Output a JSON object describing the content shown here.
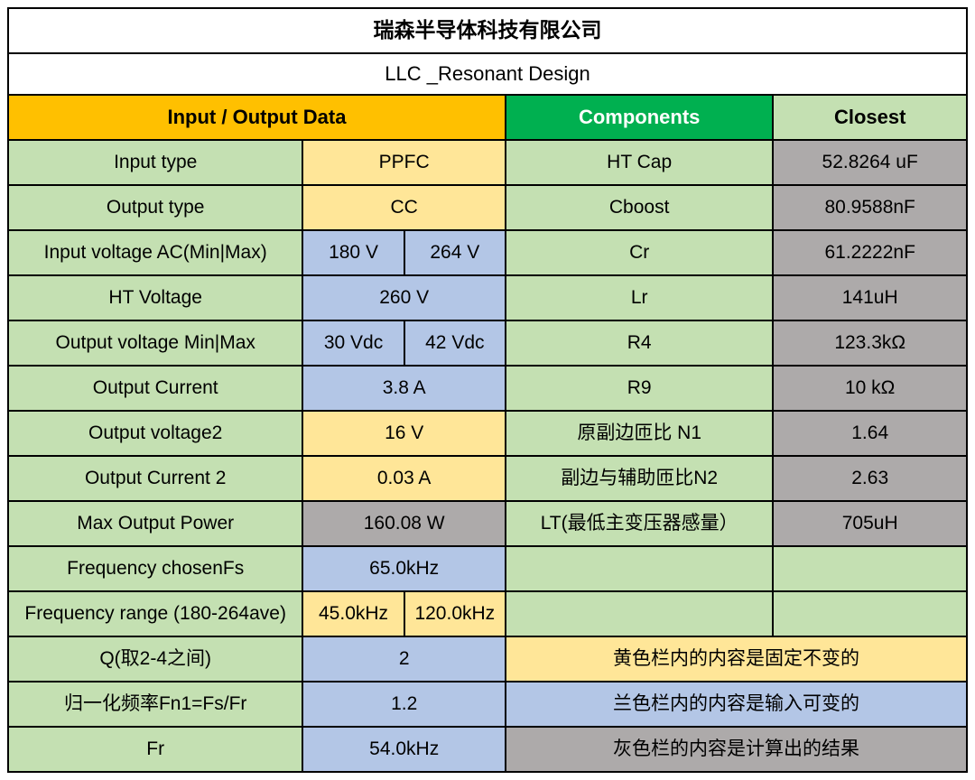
{
  "title": "瑞森半导体科技有限公司",
  "subtitle": "LLC _Resonant Design",
  "headers": {
    "io": "Input / Output Data",
    "components": "Components",
    "closest": "Closest"
  },
  "rows": [
    {
      "label": "Input type",
      "val": "PPFC",
      "split": false,
      "valbg": "bg-yellow",
      "comp": "HT Cap",
      "clos": "52.8264 uF",
      "closbg": "bg-gray"
    },
    {
      "label": "Output type",
      "val": "CC",
      "split": false,
      "valbg": "bg-yellow",
      "comp": "Cboost",
      "clos": "80.9588nF",
      "closbg": "bg-gray"
    },
    {
      "label": "Input voltage AC(Min|Max)",
      "val1": "180 V",
      "val2": "264 V",
      "split": true,
      "valbg": "bg-blue",
      "comp": "Cr",
      "clos": "61.2222nF",
      "closbg": "bg-gray"
    },
    {
      "label": "HT Voltage",
      "val": "260 V",
      "split": false,
      "valbg": "bg-blue",
      "comp": "Lr",
      "clos": "141uH",
      "closbg": "bg-gray"
    },
    {
      "label": "Output voltage Min|Max",
      "val1": "30 Vdc",
      "val2": "42 Vdc",
      "split": true,
      "valbg": "bg-blue",
      "comp": "R4",
      "clos": "123.3kΩ",
      "closbg": "bg-gray"
    },
    {
      "label": "Output Current",
      "val": "3.8 A",
      "split": false,
      "valbg": "bg-blue",
      "comp": "R9",
      "clos": "10 kΩ",
      "closbg": "bg-gray"
    },
    {
      "label": "Output voltage2",
      "val": "16 V",
      "split": false,
      "valbg": "bg-yellow",
      "comp": "原副边匝比 N1",
      "clos": "1.64",
      "closbg": "bg-gray"
    },
    {
      "label": "Output Current 2",
      "val": "0.03 A",
      "split": false,
      "valbg": "bg-yellow",
      "comp": "副边与辅助匝比N2",
      "clos": "2.63",
      "closbg": "bg-gray"
    },
    {
      "label": "Max Output Power",
      "val": "160.08 W",
      "split": false,
      "valbg": "bg-gray",
      "comp": "LT(最低主变压器感量）",
      "clos": "705uH",
      "closbg": "bg-gray"
    },
    {
      "label": "Frequency chosenFs",
      "val": "65.0kHz",
      "split": false,
      "valbg": "bg-blue",
      "comp": "",
      "clos": "",
      "closbg": "bg-lgreen"
    },
    {
      "label": "Frequency range (180-264ave)",
      "val1": "45.0kHz",
      "val2": "120.0kHz",
      "split": true,
      "valbg": "bg-yellow",
      "comp": "",
      "clos": "",
      "closbg": "bg-lgreen"
    }
  ],
  "notes": [
    {
      "label": "Q(取2-4之间)",
      "val": "2",
      "note": "黄色栏内的内容是固定不变的",
      "notebg": "bg-yellow"
    },
    {
      "label": "归一化频率Fn1=Fs/Fr",
      "val": "1.2",
      "note": "兰色栏内的内容是输入可变的",
      "notebg": "bg-blue"
    },
    {
      "label": "Fr",
      "val": "54.0kHz",
      "note": "灰色栏的内容是计算出的结果",
      "notebg": "bg-gray"
    }
  ]
}
